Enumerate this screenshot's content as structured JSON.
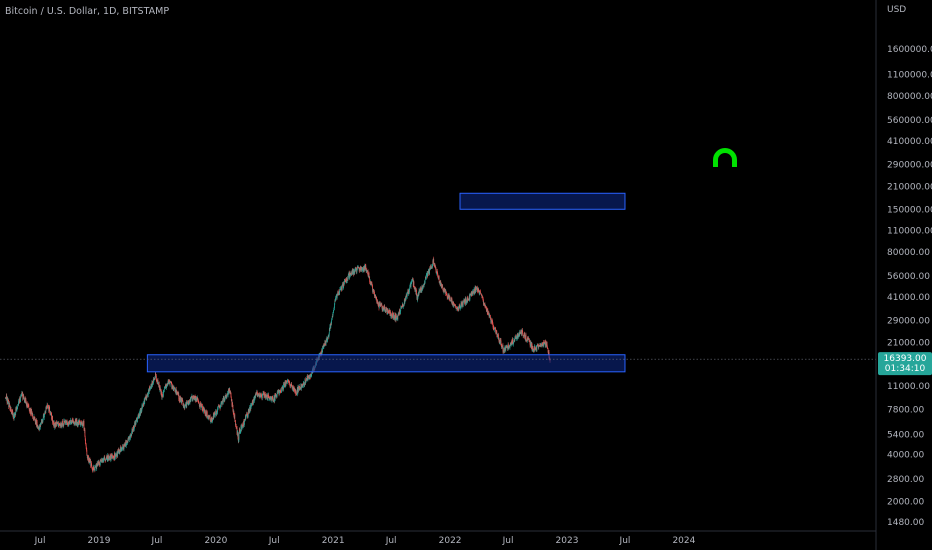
{
  "header": {
    "symbol_title": "Bitcoin / U.S. Dollar, 1D, BITSTAMP"
  },
  "colors": {
    "background": "#000000",
    "up_candle": "#26a69a",
    "down_candle": "#ef5350",
    "zone_fill": "#0d2a8a",
    "zone_border": "#2962ff",
    "price_tag_bg": "#26a69a",
    "magnet_icon": "#00e000",
    "axis_text": "#b2b5be",
    "axis_line": "#2a2e39"
  },
  "price_tag": {
    "price": "16393.00",
    "countdown": "01:34:10"
  },
  "icons": {
    "drawing_tool": "magnet-icon"
  },
  "chart_data": {
    "type": "candlestick",
    "y_scale": "log",
    "y_unit_label": "USD",
    "y_ticks": [
      1480,
      2000,
      2800,
      4000,
      5400,
      7800,
      11000,
      15000,
      21000,
      29000,
      41000,
      56000,
      80000,
      110000,
      150000,
      210000,
      290000,
      410000,
      560000,
      800000,
      1100000,
      1600000
    ],
    "y_tick_labels": [
      "1480.00",
      "2000.00",
      "2800.00",
      "4000.00",
      "5400.00",
      "7800.00",
      "11000.00",
      "15000.00",
      "21000.00",
      "29000.00",
      "41000.00",
      "56000.00",
      "80000.00",
      "110000.00",
      "150000.00",
      "210000.00",
      "290000.00",
      "410000.00",
      "560000.00",
      "800000.00",
      "1100000.00",
      "1600000.00"
    ],
    "x_ticks": [
      "2018-07-01",
      "2019-01-01",
      "2019-07-01",
      "2020-01-01",
      "2020-07-01",
      "2021-01-01",
      "2021-07-01",
      "2022-01-01",
      "2022-07-01",
      "2023-01-01",
      "2023-07-01",
      "2024-01-01"
    ],
    "x_tick_labels": [
      "Jul",
      "2019",
      "Jul",
      "2020",
      "Jul",
      "2021",
      "Jul",
      "2022",
      "Jul",
      "2023",
      "Jul",
      "2024"
    ],
    "x_range": [
      "2018-03-15",
      "2024-09-01"
    ],
    "y_range": [
      1300,
      2100000
    ],
    "last_price": 16393,
    "price_path": [
      [
        "2018-03-15",
        9500
      ],
      [
        "2018-04-10",
        7000
      ],
      [
        "2018-05-05",
        9700
      ],
      [
        "2018-06-28",
        5900
      ],
      [
        "2018-07-25",
        8300
      ],
      [
        "2018-08-14",
        6200
      ],
      [
        "2018-10-15",
        6500
      ],
      [
        "2018-11-14",
        6300
      ],
      [
        "2018-11-25",
        3900
      ],
      [
        "2018-12-15",
        3200
      ],
      [
        "2019-01-10",
        3700
      ],
      [
        "2019-02-20",
        3900
      ],
      [
        "2019-04-02",
        4900
      ],
      [
        "2019-05-15",
        8000
      ],
      [
        "2019-06-26",
        13000
      ],
      [
        "2019-07-17",
        9500
      ],
      [
        "2019-08-06",
        12000
      ],
      [
        "2019-09-25",
        8200
      ],
      [
        "2019-10-26",
        9500
      ],
      [
        "2019-12-17",
        6600
      ],
      [
        "2020-02-13",
        10400
      ],
      [
        "2020-03-12",
        4900
      ],
      [
        "2020-03-13",
        5500
      ],
      [
        "2020-05-08",
        9900
      ],
      [
        "2020-06-30",
        9100
      ],
      [
        "2020-08-10",
        11900
      ],
      [
        "2020-09-08",
        10100
      ],
      [
        "2020-10-21",
        12900
      ],
      [
        "2020-12-17",
        23000
      ],
      [
        "2021-01-08",
        40000
      ],
      [
        "2021-02-21",
        57000
      ],
      [
        "2021-03-13",
        61000
      ],
      [
        "2021-04-14",
        63000
      ],
      [
        "2021-05-19",
        37000
      ],
      [
        "2021-07-20",
        30000
      ],
      [
        "2021-09-06",
        52000
      ],
      [
        "2021-09-21",
        41000
      ],
      [
        "2021-11-10",
        69000
      ],
      [
        "2021-12-04",
        48000
      ],
      [
        "2022-01-24",
        34000
      ],
      [
        "2022-03-28",
        47000
      ],
      [
        "2022-05-12",
        28000
      ],
      [
        "2022-06-18",
        18500
      ],
      [
        "2022-08-14",
        24500
      ],
      [
        "2022-09-19",
        19000
      ],
      [
        "2022-10-28",
        20600
      ],
      [
        "2022-11-09",
        16393
      ]
    ],
    "annotations": [
      {
        "type": "rectangle",
        "label": "",
        "x_start": "2019-06-01",
        "x_end": "2023-07-01",
        "y_low": 13600,
        "y_high": 17500
      },
      {
        "type": "rectangle",
        "label": "",
        "x_start": "2022-02-01",
        "x_end": "2023-07-01",
        "y_low": 150000,
        "y_high": 190000
      }
    ]
  }
}
